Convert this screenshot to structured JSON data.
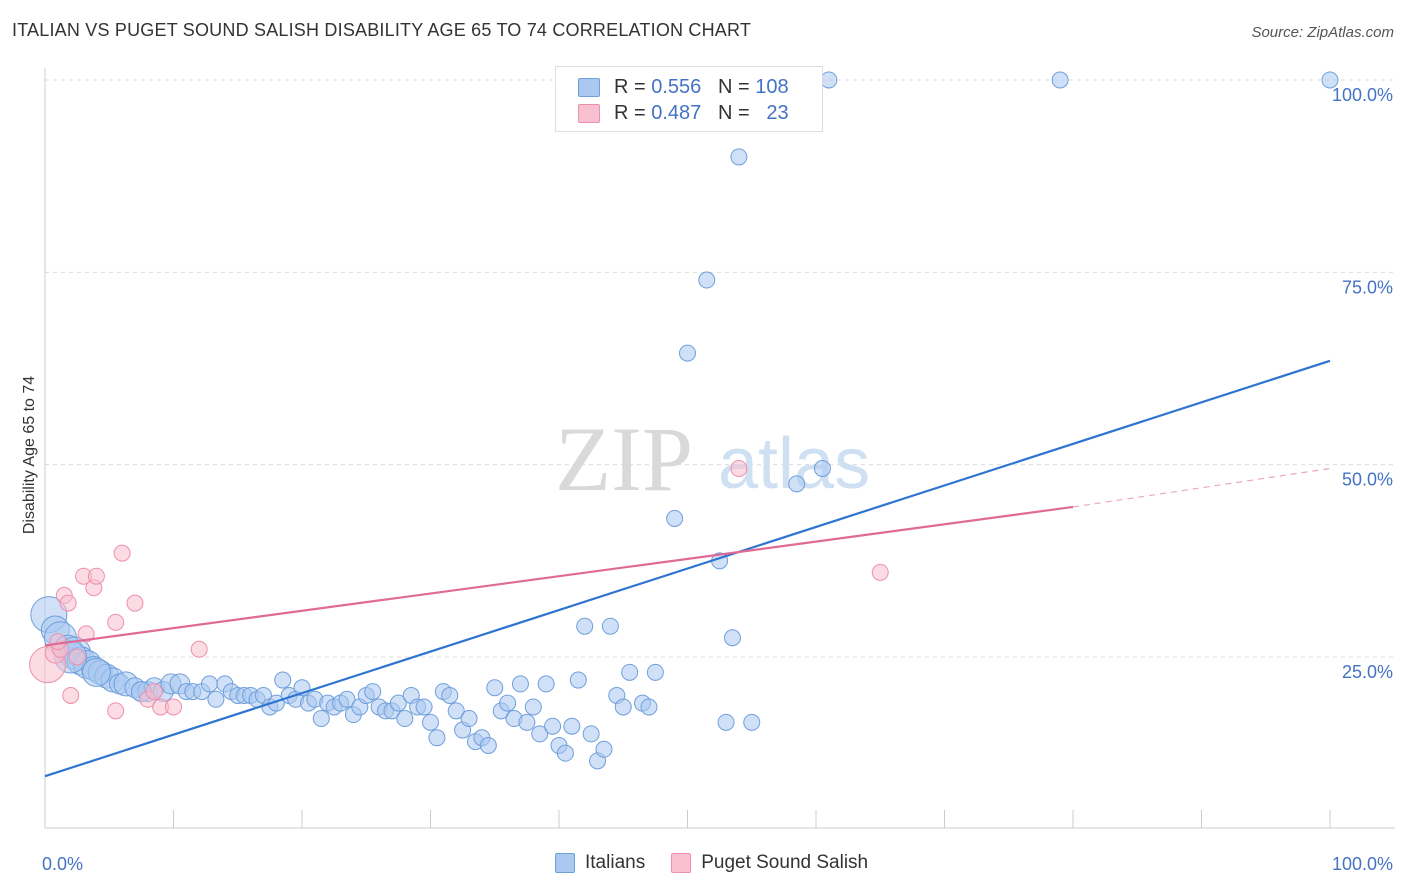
{
  "title": "ITALIAN VS PUGET SOUND SALISH DISABILITY AGE 65 TO 74 CORRELATION CHART",
  "source": "Source: ZipAtlas.com",
  "watermark": {
    "zip": "ZIP",
    "atlas": "atlas"
  },
  "legend": {
    "rows": [
      {
        "r_label": "R =",
        "r_value": "0.556",
        "n_label": "N =",
        "n_value": "108"
      },
      {
        "r_label": "R =",
        "r_value": "0.487",
        "n_label": "N =",
        "n_value": "23"
      }
    ]
  },
  "bottom_legend": {
    "italians": "Italians",
    "salish": "Puget Sound Salish"
  },
  "colors": {
    "italians_fill": "#aac8f0",
    "italians_stroke": "#6f9fdc",
    "italians_line": "#2f74d0",
    "salish_fill": "#f8c0d0",
    "salish_stroke": "#ee8fab",
    "salish_line": "#e06a94",
    "tick_text": "#4472C4"
  },
  "chart_data": {
    "type": "scatter",
    "title": "ITALIAN VS PUGET SOUND SALISH DISABILITY AGE 65 TO 74 CORRELATION CHART",
    "xlabel": "",
    "ylabel": "Disability Age 65 to 74",
    "xlim": [
      0,
      100
    ],
    "ylim": [
      0,
      102
    ],
    "x_tick_labels": [
      "0.0%",
      "100.0%"
    ],
    "y_ticks": [
      25,
      50,
      75,
      100
    ],
    "y_tick_labels": [
      "25.0%",
      "50.0%",
      "75.0%",
      "100.0%"
    ],
    "grid": "horizontal dashed",
    "series": [
      {
        "name": "Italians",
        "r": 0.556,
        "n": 108,
        "trend": {
          "x": [
            0,
            100
          ],
          "y": [
            9.5,
            63.5
          ]
        },
        "points": [
          [
            0.3,
            30.5,
            18
          ],
          [
            0.8,
            28.5,
            14
          ],
          [
            1.2,
            27.5,
            16
          ],
          [
            1.8,
            26,
            14
          ],
          [
            2.3,
            25.5,
            16
          ],
          [
            2.8,
            24.5,
            14
          ],
          [
            3.3,
            24,
            14
          ],
          [
            3.8,
            23.5,
            12
          ],
          [
            4.3,
            23,
            12
          ],
          [
            4.8,
            22.5,
            12
          ],
          [
            5.3,
            22,
            12
          ],
          [
            5.8,
            21.5,
            10
          ],
          [
            6.3,
            21.5,
            12
          ],
          [
            7,
            21,
            10
          ],
          [
            7.5,
            20.5,
            10
          ],
          [
            8,
            20.5,
            10
          ],
          [
            8.5,
            21,
            10
          ],
          [
            9.2,
            20.5,
            10
          ],
          [
            9.8,
            21.5,
            10
          ],
          [
            10.5,
            21.5,
            10
          ],
          [
            11,
            20.5,
            8
          ],
          [
            11.5,
            20.5,
            8
          ],
          [
            12.2,
            20.5,
            8
          ],
          [
            12.8,
            21.5,
            8
          ],
          [
            13.3,
            19.5,
            8
          ],
          [
            14,
            21.5,
            8
          ],
          [
            14.5,
            20.5,
            8
          ],
          [
            15,
            20,
            8
          ],
          [
            15.5,
            20,
            8
          ],
          [
            16,
            20,
            8
          ],
          [
            16.5,
            19.5,
            8
          ],
          [
            17,
            20,
            8
          ],
          [
            17.5,
            18.5,
            8
          ],
          [
            18,
            19,
            8
          ],
          [
            18.5,
            22,
            8
          ],
          [
            19,
            20,
            8
          ],
          [
            19.5,
            19.5,
            8
          ],
          [
            20,
            21,
            8
          ],
          [
            20.5,
            19,
            8
          ],
          [
            21,
            19.5,
            8
          ],
          [
            21.5,
            17,
            8
          ],
          [
            22,
            19,
            8
          ],
          [
            22.5,
            18.5,
            8
          ],
          [
            23,
            19,
            8
          ],
          [
            23.5,
            19.5,
            8
          ],
          [
            24,
            17.5,
            8
          ],
          [
            24.5,
            18.5,
            8
          ],
          [
            25,
            20,
            8
          ],
          [
            25.5,
            20.5,
            8
          ],
          [
            26,
            18.5,
            8
          ],
          [
            26.5,
            18,
            8
          ],
          [
            27,
            18,
            8
          ],
          [
            27.5,
            19,
            8
          ],
          [
            28,
            17,
            8
          ],
          [
            28.5,
            20,
            8
          ],
          [
            29,
            18.5,
            8
          ],
          [
            29.5,
            18.5,
            8
          ],
          [
            30,
            16.5,
            8
          ],
          [
            30.5,
            14.5,
            8
          ],
          [
            31,
            20.5,
            8
          ],
          [
            31.5,
            20,
            8
          ],
          [
            32,
            18,
            8
          ],
          [
            32.5,
            15.5,
            8
          ],
          [
            33,
            17,
            8
          ],
          [
            33.5,
            14,
            8
          ],
          [
            34,
            14.5,
            8
          ],
          [
            34.5,
            13.5,
            8
          ],
          [
            35,
            21,
            8
          ],
          [
            35.5,
            18,
            8
          ],
          [
            36,
            19,
            8
          ],
          [
            36.5,
            17,
            8
          ],
          [
            37,
            21.5,
            8
          ],
          [
            37.5,
            16.5,
            8
          ],
          [
            38,
            18.5,
            8
          ],
          [
            38.5,
            15,
            8
          ],
          [
            39,
            21.5,
            8
          ],
          [
            39.5,
            16,
            8
          ],
          [
            40,
            13.5,
            8
          ],
          [
            40.5,
            12.5,
            8
          ],
          [
            41,
            16,
            8
          ],
          [
            41.5,
            22,
            8
          ],
          [
            42,
            29,
            8
          ],
          [
            42.5,
            15,
            8
          ],
          [
            43,
            11.5,
            8
          ],
          [
            43.5,
            13,
            8
          ],
          [
            44,
            29,
            8
          ],
          [
            44.5,
            20,
            8
          ],
          [
            45,
            18.5,
            8
          ],
          [
            45.5,
            23,
            8
          ],
          [
            46.5,
            19,
            8
          ],
          [
            47,
            18.5,
            8
          ],
          [
            47.5,
            23,
            8
          ],
          [
            49,
            43,
            8
          ],
          [
            50,
            64.5,
            8
          ],
          [
            51.5,
            74,
            8
          ],
          [
            52.5,
            37.5,
            8
          ],
          [
            53,
            16.5,
            8
          ],
          [
            53.5,
            27.5,
            8
          ],
          [
            54,
            90,
            8
          ],
          [
            55,
            16.5,
            8
          ],
          [
            58.5,
            47.5,
            8
          ],
          [
            60.5,
            49.5,
            8
          ],
          [
            61,
            100,
            8
          ],
          [
            79,
            100,
            8
          ],
          [
            100,
            100,
            8
          ],
          [
            2,
            25,
            16
          ],
          [
            4,
            23,
            14
          ],
          [
            7.5,
            20.5,
            10
          ]
        ]
      },
      {
        "name": "Puget Sound Salish",
        "r": 0.487,
        "n": 23,
        "trend": {
          "x": [
            0,
            80
          ],
          "y": [
            26.5,
            44.5
          ]
        },
        "trend_dashed": {
          "x": [
            80,
            100
          ],
          "y": [
            44.5,
            49.5
          ]
        },
        "points": [
          [
            0.2,
            24,
            18
          ],
          [
            0.8,
            25.5,
            10
          ],
          [
            1.2,
            26,
            8
          ],
          [
            1.5,
            33,
            8
          ],
          [
            1.8,
            32,
            8
          ],
          [
            2,
            20,
            8
          ],
          [
            2.5,
            25,
            8
          ],
          [
            3,
            35.5,
            8
          ],
          [
            3.2,
            28,
            8
          ],
          [
            3.8,
            34,
            8
          ],
          [
            4,
            35.5,
            8
          ],
          [
            5.5,
            18,
            8
          ],
          [
            5.5,
            29.5,
            8
          ],
          [
            6,
            38.5,
            8
          ],
          [
            7,
            32,
            8
          ],
          [
            8,
            19.5,
            8
          ],
          [
            8.5,
            20.5,
            8
          ],
          [
            9,
            18.5,
            8
          ],
          [
            10,
            18.5,
            8
          ],
          [
            12,
            26,
            8
          ],
          [
            54,
            49.5,
            8
          ],
          [
            65,
            36,
            8
          ],
          [
            1,
            27,
            8
          ]
        ]
      }
    ]
  }
}
